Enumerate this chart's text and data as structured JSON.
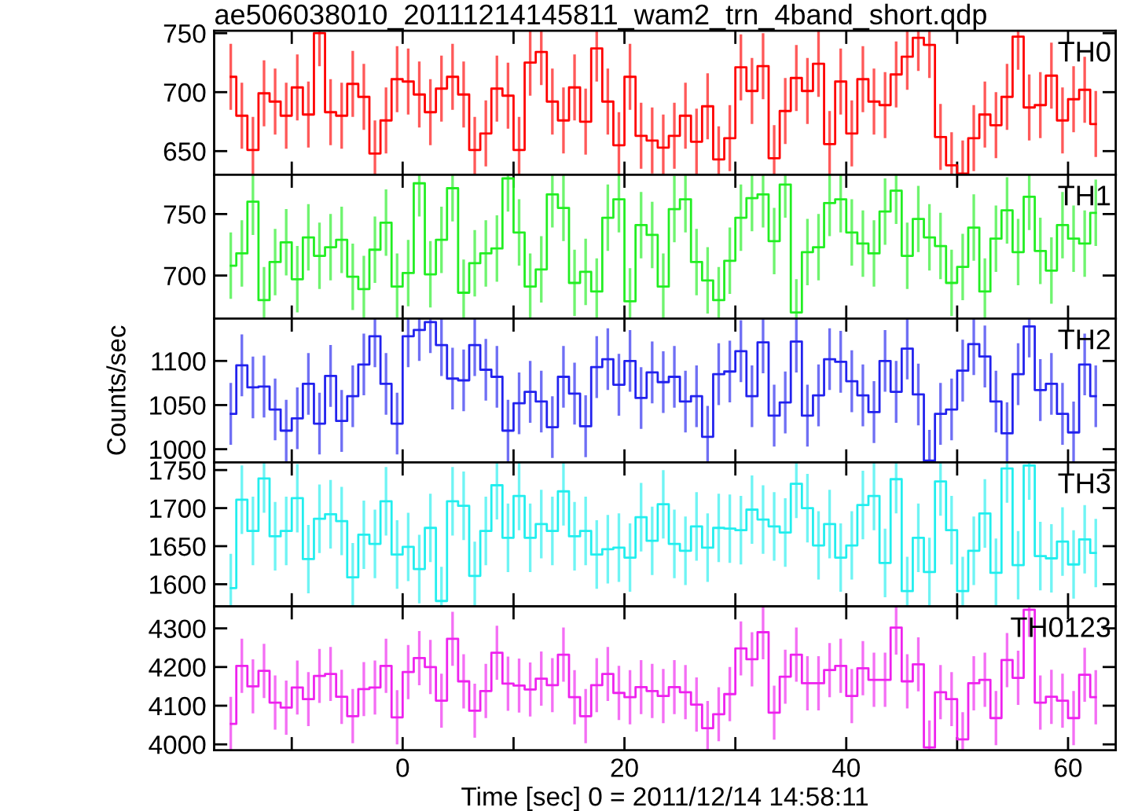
{
  "chart_data": [
    {
      "type": "step",
      "title": "ae506038010_20111214145811_wam2_trn_4band_short.qdp",
      "annotations": [
        "TH0"
      ],
      "color": "#ff0000",
      "tick_labels": "y",
      "xlim": [
        -17,
        64.3
      ],
      "xticks": [
        {
          "value": -10,
          "label": null
        },
        {
          "value": 0,
          "label": null
        },
        {
          "value": 10,
          "label": null
        },
        {
          "value": 20,
          "label": null
        },
        {
          "value": 30,
          "label": null
        },
        {
          "value": 40,
          "label": null
        },
        {
          "value": 50,
          "label": null
        },
        {
          "value": 60,
          "label": null
        }
      ],
      "ylim": [
        630,
        752
      ],
      "yticks": [
        650,
        700,
        750
      ],
      "x": [
        -15.5,
        -14.5,
        -13.5,
        -12.5,
        -11.5,
        -10.5,
        -9.5,
        -8.5,
        -7.5,
        -6.5,
        -5.5,
        -4.5,
        -3.5,
        -2.5,
        -1.5,
        -0.5,
        0.5,
        1.5,
        2.5,
        3.5,
        4.5,
        5.5,
        6.5,
        7.5,
        8.5,
        9.5,
        10.5,
        11.5,
        12.5,
        13.5,
        14.5,
        15.5,
        16.5,
        17.5,
        18.5,
        19.5,
        20.5,
        21.5,
        22.5,
        23.5,
        24.5,
        25.5,
        26.5,
        27.5,
        28.5,
        29.5,
        30.5,
        31.5,
        32.5,
        33.5,
        34.5,
        35.5,
        36.5,
        37.5,
        38.5,
        39.5,
        40.5,
        41.5,
        42.5,
        43.5,
        44.5,
        45.5,
        46.5,
        47.5,
        48.5,
        49.5,
        50.5,
        51.5,
        52.5,
        53.5,
        54.5,
        55.5,
        56.5,
        57.5,
        58.5,
        59.5,
        60.5,
        61.5,
        62.5
      ],
      "values": [
        713,
        680,
        651,
        699,
        692,
        680,
        704,
        681,
        750,
        683,
        680,
        707,
        696,
        648,
        676,
        711,
        709,
        698,
        683,
        703,
        713,
        698,
        651,
        665,
        703,
        697,
        651,
        725,
        734,
        692,
        676,
        704,
        675,
        737,
        692,
        655,
        713,
        663,
        659,
        653,
        663,
        680,
        658,
        688,
        643,
        661,
        721,
        701,
        722,
        644,
        684,
        712,
        701,
        724,
        656,
        709,
        665,
        711,
        692,
        689,
        715,
        730,
        746,
        740,
        662,
        638,
        631,
        661,
        681,
        672,
        696,
        747,
        687,
        689,
        714,
        676,
        694,
        702,
        673
      ],
      "errors": [
        28,
        28,
        28,
        28,
        28,
        28,
        28,
        28,
        28,
        28,
        28,
        28,
        28,
        28,
        28,
        28,
        28,
        28,
        28,
        28,
        28,
        28,
        28,
        28,
        28,
        28,
        28,
        28,
        28,
        28,
        28,
        28,
        28,
        28,
        28,
        28,
        28,
        28,
        28,
        28,
        28,
        28,
        28,
        28,
        28,
        28,
        28,
        28,
        28,
        28,
        28,
        28,
        28,
        28,
        28,
        28,
        28,
        28,
        28,
        28,
        28,
        28,
        28,
        28,
        28,
        28,
        28,
        28,
        28,
        28,
        28,
        28,
        28,
        28,
        28,
        28,
        28,
        28,
        28
      ]
    },
    {
      "type": "step",
      "annotations": [
        "TH1"
      ],
      "color": "#22ee22",
      "tick_labels": "y",
      "xlim": [
        -17,
        64.3
      ],
      "xticks": [
        {
          "value": -10,
          "label": null
        },
        {
          "value": 0,
          "label": null
        },
        {
          "value": 10,
          "label": null
        },
        {
          "value": 20,
          "label": null
        },
        {
          "value": 30,
          "label": null
        },
        {
          "value": 40,
          "label": null
        },
        {
          "value": 50,
          "label": null
        },
        {
          "value": 60,
          "label": null
        }
      ],
      "ylim": [
        665,
        782
      ],
      "yticks": [
        700,
        750
      ],
      "x": [
        -15.5,
        -14.5,
        -13.5,
        -12.5,
        -11.5,
        -10.5,
        -9.5,
        -8.5,
        -7.5,
        -6.5,
        -5.5,
        -4.5,
        -3.5,
        -2.5,
        -1.5,
        -0.5,
        0.5,
        1.5,
        2.5,
        3.5,
        4.5,
        5.5,
        6.5,
        7.5,
        8.5,
        9.5,
        10.5,
        11.5,
        12.5,
        13.5,
        14.5,
        15.5,
        16.5,
        17.5,
        18.5,
        19.5,
        20.5,
        21.5,
        22.5,
        23.5,
        24.5,
        25.5,
        26.5,
        27.5,
        28.5,
        29.5,
        30.5,
        31.5,
        32.5,
        33.5,
        34.5,
        35.5,
        36.5,
        37.5,
        38.5,
        39.5,
        40.5,
        41.5,
        42.5,
        43.5,
        44.5,
        45.5,
        46.5,
        47.5,
        48.5,
        49.5,
        50.5,
        51.5,
        52.5,
        53.5,
        54.5,
        55.5,
        56.5,
        57.5,
        58.5,
        59.5,
        60.5,
        61.5,
        62.5
      ],
      "values": [
        708,
        718,
        760,
        680,
        711,
        727,
        697,
        731,
        716,
        723,
        729,
        699,
        689,
        721,
        743,
        691,
        702,
        775,
        701,
        729,
        771,
        686,
        710,
        718,
        722,
        779,
        735,
        691,
        705,
        766,
        755,
        694,
        703,
        687,
        747,
        762,
        679,
        741,
        733,
        691,
        754,
        762,
        711,
        696,
        680,
        712,
        747,
        763,
        766,
        728,
        774,
        670,
        719,
        723,
        759,
        762,
        735,
        726,
        718,
        752,
        769,
        716,
        746,
        731,
        724,
        694,
        707,
        739,
        687,
        730,
        753,
        719,
        764,
        720,
        704,
        741,
        730,
        726,
        751
      ],
      "errors": [
        27,
        27,
        27,
        27,
        27,
        27,
        27,
        27,
        27,
        27,
        27,
        27,
        27,
        27,
        27,
        27,
        27,
        27,
        27,
        27,
        27,
        27,
        27,
        27,
        27,
        27,
        27,
        27,
        27,
        27,
        27,
        27,
        27,
        27,
        27,
        27,
        27,
        27,
        27,
        27,
        27,
        27,
        27,
        27,
        27,
        27,
        27,
        27,
        27,
        27,
        27,
        27,
        27,
        27,
        27,
        27,
        27,
        27,
        27,
        27,
        27,
        27,
        27,
        27,
        27,
        27,
        27,
        27,
        27,
        27,
        27,
        27,
        27,
        27,
        27,
        27,
        27,
        27,
        27
      ]
    },
    {
      "type": "step",
      "annotations": [
        "TH2"
      ],
      "ylabel": "Counts/sec",
      "color": "#2222ee",
      "tick_labels": "y",
      "xlim": [
        -17,
        64.3
      ],
      "xticks": [
        {
          "value": -10,
          "label": null
        },
        {
          "value": 0,
          "label": null
        },
        {
          "value": 10,
          "label": null
        },
        {
          "value": 20,
          "label": null
        },
        {
          "value": 30,
          "label": null
        },
        {
          "value": 40,
          "label": null
        },
        {
          "value": 50,
          "label": null
        },
        {
          "value": 60,
          "label": null
        }
      ],
      "ylim": [
        985,
        1148
      ],
      "yticks": [
        1000,
        1050,
        1100
      ],
      "x": [
        -15.5,
        -14.5,
        -13.5,
        -12.5,
        -11.5,
        -10.5,
        -9.5,
        -8.5,
        -7.5,
        -6.5,
        -5.5,
        -4.5,
        -3.5,
        -2.5,
        -1.5,
        -0.5,
        0.5,
        1.5,
        2.5,
        3.5,
        4.5,
        5.5,
        6.5,
        7.5,
        8.5,
        9.5,
        10.5,
        11.5,
        12.5,
        13.5,
        14.5,
        15.5,
        16.5,
        17.5,
        18.5,
        19.5,
        20.5,
        21.5,
        22.5,
        23.5,
        24.5,
        25.5,
        26.5,
        27.5,
        28.5,
        29.5,
        30.5,
        31.5,
        32.5,
        33.5,
        34.5,
        35.5,
        36.5,
        37.5,
        38.5,
        39.5,
        40.5,
        41.5,
        42.5,
        43.5,
        44.5,
        45.5,
        46.5,
        47.5,
        48.5,
        49.5,
        50.5,
        51.5,
        52.5,
        53.5,
        54.5,
        55.5,
        56.5,
        57.5,
        58.5,
        59.5,
        60.5,
        61.5,
        62.5
      ],
      "values": [
        1040,
        1095,
        1070,
        1071,
        1045,
        1021,
        1035,
        1074,
        1029,
        1083,
        1032,
        1060,
        1096,
        1128,
        1074,
        1029,
        1128,
        1135,
        1144,
        1118,
        1080,
        1078,
        1118,
        1090,
        1082,
        1021,
        1052,
        1065,
        1054,
        1025,
        1082,
        1063,
        1026,
        1093,
        1102,
        1073,
        1100,
        1058,
        1087,
        1076,
        1082,
        1054,
        1060,
        1014,
        1085,
        1088,
        1111,
        1060,
        1121,
        1038,
        1053,
        1122,
        1038,
        1061,
        1102,
        1099,
        1077,
        1061,
        1042,
        1100,
        1065,
        1114,
        1062,
        987,
        1040,
        1045,
        1089,
        1119,
        1105,
        1054,
        1018,
        1085,
        1139,
        1067,
        1074,
        1040,
        1019,
        1096,
        1060
      ],
      "errors": [
        35,
        35,
        35,
        35,
        35,
        35,
        35,
        35,
        35,
        35,
        35,
        35,
        35,
        35,
        35,
        35,
        35,
        35,
        35,
        35,
        35,
        35,
        35,
        35,
        35,
        35,
        35,
        35,
        35,
        35,
        35,
        35,
        35,
        35,
        35,
        35,
        35,
        35,
        35,
        35,
        35,
        35,
        35,
        35,
        35,
        35,
        35,
        35,
        35,
        35,
        35,
        35,
        35,
        35,
        35,
        35,
        35,
        35,
        35,
        35,
        35,
        35,
        35,
        35,
        35,
        35,
        35,
        35,
        35,
        35,
        35,
        35,
        35,
        35,
        35,
        35,
        35,
        35,
        35
      ]
    },
    {
      "type": "step",
      "annotations": [
        "TH3"
      ],
      "color": "#22eeee",
      "tick_labels": "y",
      "xlim": [
        -17,
        64.3
      ],
      "xticks": [
        {
          "value": -10,
          "label": null
        },
        {
          "value": 0,
          "label": null
        },
        {
          "value": 10,
          "label": null
        },
        {
          "value": 20,
          "label": null
        },
        {
          "value": 30,
          "label": null
        },
        {
          "value": 40,
          "label": null
        },
        {
          "value": 50,
          "label": null
        },
        {
          "value": 60,
          "label": null
        }
      ],
      "ylim": [
        1571,
        1760
      ],
      "yticks": [
        1600,
        1650,
        1700,
        1750
      ],
      "x": [
        -15.5,
        -14.5,
        -13.5,
        -12.5,
        -11.5,
        -10.5,
        -9.5,
        -8.5,
        -7.5,
        -6.5,
        -5.5,
        -4.5,
        -3.5,
        -2.5,
        -1.5,
        -0.5,
        0.5,
        1.5,
        2.5,
        3.5,
        4.5,
        5.5,
        6.5,
        7.5,
        8.5,
        9.5,
        10.5,
        11.5,
        12.5,
        13.5,
        14.5,
        15.5,
        16.5,
        17.5,
        18.5,
        19.5,
        20.5,
        21.5,
        22.5,
        23.5,
        24.5,
        25.5,
        26.5,
        27.5,
        28.5,
        29.5,
        30.5,
        31.5,
        32.5,
        33.5,
        34.5,
        35.5,
        36.5,
        37.5,
        38.5,
        39.5,
        40.5,
        41.5,
        42.5,
        43.5,
        44.5,
        45.5,
        46.5,
        47.5,
        48.5,
        49.5,
        50.5,
        51.5,
        52.5,
        53.5,
        54.5,
        55.5,
        56.5,
        57.5,
        58.5,
        59.5,
        60.5,
        61.5,
        62.5
      ],
      "values": [
        1595,
        1711,
        1670,
        1739,
        1663,
        1670,
        1713,
        1633,
        1686,
        1692,
        1683,
        1609,
        1665,
        1653,
        1709,
        1639,
        1649,
        1620,
        1674,
        1578,
        1709,
        1703,
        1611,
        1670,
        1730,
        1661,
        1716,
        1661,
        1679,
        1670,
        1722,
        1663,
        1670,
        1639,
        1646,
        1648,
        1635,
        1688,
        1657,
        1705,
        1653,
        1644,
        1676,
        1648,
        1674,
        1673,
        1671,
        1698,
        1685,
        1676,
        1668,
        1732,
        1700,
        1651,
        1679,
        1635,
        1651,
        1704,
        1716,
        1628,
        1738,
        1591,
        1661,
        1616,
        1735,
        1671,
        1591,
        1644,
        1693,
        1615,
        1752,
        1625,
        1756,
        1637,
        1634,
        1656,
        1626,
        1659,
        1641
      ],
      "errors": [
        45,
        45,
        45,
        45,
        45,
        45,
        45,
        45,
        45,
        45,
        45,
        45,
        45,
        45,
        45,
        45,
        45,
        45,
        45,
        45,
        45,
        45,
        45,
        45,
        45,
        45,
        45,
        45,
        45,
        45,
        45,
        45,
        45,
        45,
        45,
        45,
        45,
        45,
        45,
        45,
        45,
        45,
        45,
        45,
        45,
        45,
        45,
        45,
        45,
        45,
        45,
        45,
        45,
        45,
        45,
        45,
        45,
        45,
        45,
        45,
        45,
        45,
        45,
        45,
        45,
        45,
        45,
        45,
        45,
        45,
        45,
        45,
        45,
        45,
        45,
        45,
        45,
        45,
        45
      ]
    },
    {
      "type": "step",
      "annotations": [
        "TH0123"
      ],
      "xlabel": "Time [sec] 0 = 2011/12/14 14:58:11",
      "color": "#ee22ee",
      "xlim": [
        -17,
        64.3
      ],
      "xticks": [
        {
          "value": -10,
          "label": null
        },
        0,
        {
          "value": 10,
          "label": null
        },
        20,
        {
          "value": 30,
          "label": null
        },
        40,
        {
          "value": 50,
          "label": null
        },
        60
      ],
      "ylim": [
        3985,
        4357
      ],
      "yticks": [
        4000,
        4100,
        4200,
        4300
      ],
      "x": [
        -15.5,
        -14.5,
        -13.5,
        -12.5,
        -11.5,
        -10.5,
        -9.5,
        -8.5,
        -7.5,
        -6.5,
        -5.5,
        -4.5,
        -3.5,
        -2.5,
        -1.5,
        -0.5,
        0.5,
        1.5,
        2.5,
        3.5,
        4.5,
        5.5,
        6.5,
        7.5,
        8.5,
        9.5,
        10.5,
        11.5,
        12.5,
        13.5,
        14.5,
        15.5,
        16.5,
        17.5,
        18.5,
        19.5,
        20.5,
        21.5,
        22.5,
        23.5,
        24.5,
        25.5,
        26.5,
        27.5,
        28.5,
        29.5,
        30.5,
        31.5,
        32.5,
        33.5,
        34.5,
        35.5,
        36.5,
        37.5,
        38.5,
        39.5,
        40.5,
        41.5,
        42.5,
        43.5,
        44.5,
        45.5,
        46.5,
        47.5,
        48.5,
        49.5,
        50.5,
        51.5,
        52.5,
        53.5,
        54.5,
        55.5,
        56.5,
        57.5,
        58.5,
        59.5,
        60.5,
        61.5,
        62.5
      ],
      "values": [
        4053,
        4203,
        4150,
        4190,
        4108,
        4095,
        4147,
        4117,
        4177,
        4182,
        4123,
        4073,
        4143,
        4147,
        4203,
        4070,
        4187,
        4223,
        4200,
        4113,
        4273,
        4163,
        4087,
        4138,
        4237,
        4157,
        4152,
        4142,
        4170,
        4153,
        4232,
        4122,
        4073,
        4153,
        4182,
        4133,
        4122,
        4148,
        4138,
        4125,
        4148,
        4135,
        4103,
        4042,
        4078,
        4130,
        4248,
        4220,
        4290,
        4082,
        4175,
        4232,
        4158,
        4158,
        4192,
        4203,
        4125,
        4197,
        4167,
        4167,
        4302,
        4163,
        4207,
        3992,
        4135,
        4117,
        4013,
        4158,
        4167,
        4068,
        4218,
        4172,
        4348,
        4108,
        4123,
        4113,
        4068,
        4180,
        4122
      ],
      "errors": [
        70,
        70,
        70,
        70,
        70,
        70,
        70,
        70,
        70,
        70,
        70,
        70,
        70,
        70,
        70,
        70,
        70,
        70,
        70,
        70,
        70,
        70,
        70,
        70,
        70,
        70,
        70,
        70,
        70,
        70,
        70,
        70,
        70,
        70,
        70,
        70,
        70,
        70,
        70,
        70,
        70,
        70,
        70,
        70,
        70,
        70,
        70,
        70,
        70,
        70,
        70,
        70,
        70,
        70,
        70,
        70,
        70,
        70,
        70,
        70,
        70,
        70,
        70,
        70,
        70,
        70,
        70,
        70,
        70,
        70,
        70,
        70,
        70,
        70,
        70,
        70,
        70,
        70,
        70
      ]
    }
  ]
}
